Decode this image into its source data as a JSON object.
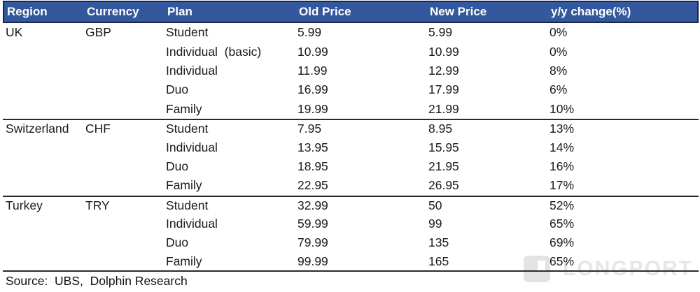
{
  "header": {
    "columns": {
      "region": "Region",
      "currency": "Currency",
      "plan": "Plan",
      "old_price": "Old Price",
      "new_price": "New Price",
      "change": "y/y change(%)"
    }
  },
  "rows": [
    {
      "region": "UK",
      "currency": "GBP",
      "plan": "Student",
      "old_price": "5.99",
      "new_price": "5.99",
      "change": "0%"
    },
    {
      "region": "",
      "currency": "",
      "plan": "Individual  (basic)",
      "old_price": "10.99",
      "new_price": "10.99",
      "change": "0%"
    },
    {
      "region": "",
      "currency": "",
      "plan": "Individual",
      "old_price": "11.99",
      "new_price": "12.99",
      "change": "8%"
    },
    {
      "region": "",
      "currency": "",
      "plan": "Duo",
      "old_price": "16.99",
      "new_price": "17.99",
      "change": "6%"
    },
    {
      "region": "",
      "currency": "",
      "plan": "Family",
      "old_price": "19.99",
      "new_price": "21.99",
      "change": "10%"
    },
    {
      "region": "Switzerland",
      "currency": "CHF",
      "plan": "Student",
      "old_price": "7.95",
      "new_price": "8.95",
      "change": "13%"
    },
    {
      "region": "",
      "currency": "",
      "plan": "Individual",
      "old_price": "13.95",
      "new_price": "15.95",
      "change": "14%"
    },
    {
      "region": "",
      "currency": "",
      "plan": "Duo",
      "old_price": "18.95",
      "new_price": "21.95",
      "change": "16%"
    },
    {
      "region": "",
      "currency": "",
      "plan": "Family",
      "old_price": "22.95",
      "new_price": "26.95",
      "change": "17%"
    },
    {
      "region": "Turkey",
      "currency": "TRY",
      "plan": "Student",
      "old_price": "32.99",
      "new_price": "50",
      "change": "52%"
    },
    {
      "region": "",
      "currency": "",
      "plan": "Individual",
      "old_price": "59.99",
      "new_price": "99",
      "change": "65%"
    },
    {
      "region": "",
      "currency": "",
      "plan": "Duo",
      "old_price": "79.99",
      "new_price": "135",
      "change": "69%"
    },
    {
      "region": "",
      "currency": "",
      "plan": "Family",
      "old_price": "99.99",
      "new_price": "165",
      "change": "65%"
    }
  ],
  "footer": {
    "source": "Source:  UBS,  Dolphin Research"
  },
  "watermark": {
    "label": "LONGPORT"
  },
  "colors": {
    "header_bg": "#33589E",
    "header_border": "#1A2747",
    "text": "#1A1A1A",
    "divider": "#2A2A2A",
    "watermark": "#E7E7E7"
  },
  "chart_data": {
    "type": "table",
    "title": "",
    "columns": [
      "Region",
      "Currency",
      "Plan",
      "Old Price",
      "New Price",
      "y/y change(%)"
    ],
    "rows": [
      [
        "UK",
        "GBP",
        "Student",
        5.99,
        5.99,
        "0%"
      ],
      [
        "",
        "",
        "Individual (basic)",
        10.99,
        10.99,
        "0%"
      ],
      [
        "",
        "",
        "Individual",
        11.99,
        12.99,
        "8%"
      ],
      [
        "",
        "",
        "Duo",
        16.99,
        17.99,
        "6%"
      ],
      [
        "",
        "",
        "Family",
        19.99,
        21.99,
        "10%"
      ],
      [
        "Switzerland",
        "CHF",
        "Student",
        7.95,
        8.95,
        "13%"
      ],
      [
        "",
        "",
        "Individual",
        13.95,
        15.95,
        "14%"
      ],
      [
        "",
        "",
        "Duo",
        18.95,
        21.95,
        "16%"
      ],
      [
        "",
        "",
        "Family",
        22.95,
        26.95,
        "17%"
      ],
      [
        "Turkey",
        "TRY",
        "Student",
        32.99,
        50,
        "52%"
      ],
      [
        "",
        "",
        "Individual",
        59.99,
        99,
        "65%"
      ],
      [
        "",
        "",
        "Duo",
        79.99,
        135,
        "69%"
      ],
      [
        "",
        "",
        "Family",
        99.99,
        165,
        "65%"
      ]
    ],
    "source": "Source: UBS, Dolphin Research"
  }
}
